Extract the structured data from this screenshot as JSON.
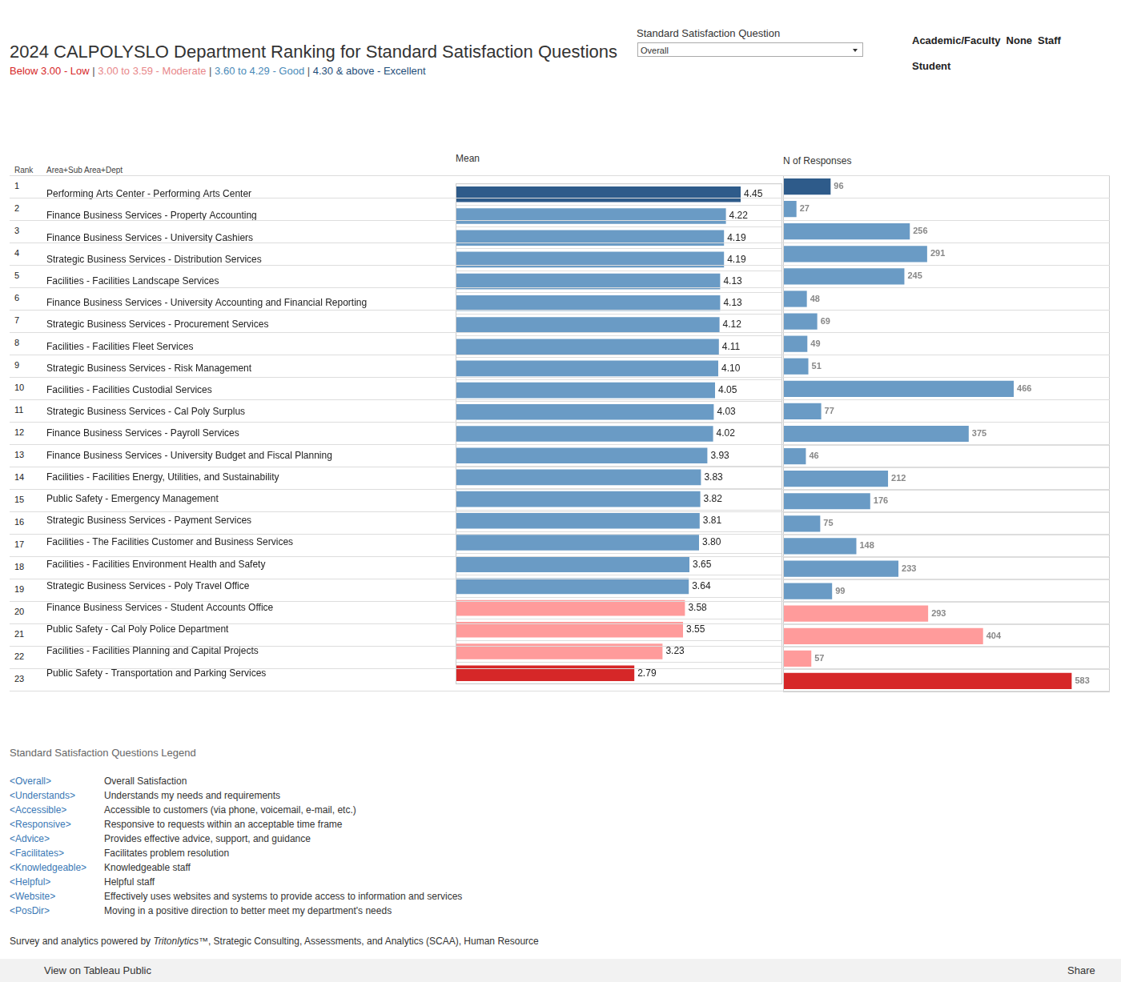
{
  "header": {
    "title": "2024 CALPOLYSLO Department Ranking for Standard Satisfaction Questions",
    "subtitle": [
      {
        "text": "Below 3.00 - Low",
        "color": "#d62728"
      },
      {
        "text": " | ",
        "color": "#555555"
      },
      {
        "text": "3.00 to 3.59 - Moderate",
        "color": "#e8878a"
      },
      {
        "text": " | ",
        "color": "#555555"
      },
      {
        "text": "3.60 to 4.29 - Good",
        "color": "#4a8ab8"
      },
      {
        "text": " | ",
        "color": "#555555"
      },
      {
        "text": "4.30 & above - Excellent",
        "color": "#1f4e79"
      }
    ],
    "filter": {
      "label": "Standard Satisfaction Question",
      "value": "Overall"
    },
    "roles": [
      "Academic/Faculty",
      "None",
      "Staff",
      "Student"
    ]
  },
  "table": {
    "rank_header": "Rank",
    "dept_header": "Area+Sub Area+Dept",
    "ranks": [
      1,
      2,
      3,
      4,
      5,
      6,
      7,
      8,
      9,
      10,
      11,
      12,
      13,
      14,
      15,
      16,
      17,
      18,
      19,
      20,
      21,
      22,
      23
    ]
  },
  "chart_data": [
    {
      "type": "bar",
      "title": "Mean",
      "orientation": "horizontal",
      "data_labels": true,
      "tick_labels": "y",
      "grid": true,
      "categories": [
        "Performing Arts Center - Performing Arts Center",
        "Finance Business Services - Property Accounting",
        "Finance Business Services - University Cashiers",
        "Strategic Business Services - Distribution Services",
        "Facilities - Facilities Landscape Services",
        "Finance Business Services - University Accounting and Financial Reporting",
        "Strategic Business Services - Procurement Services",
        "Facilities - Facilities Fleet Services",
        "Strategic Business Services - Risk Management",
        "Facilities - Facilities Custodial Services",
        "Strategic Business Services - Cal Poly Surplus",
        "Finance Business Services - Payroll Services",
        "Finance Business Services - University Budget and Fiscal Planning",
        "Facilities - Facilities Energy, Utilities, and Sustainability",
        "Public Safety - Emergency Management",
        "Strategic Business Services - Payment Services",
        "Facilities - The Facilities Customer and Business Services",
        "Facilities - Facilities Environment Health and Safety",
        "Strategic Business Services - Poly Travel Office",
        "Finance Business Services - Student Accounts Office",
        "Public Safety - Cal Poly Police Department",
        "Facilities - Facilities Planning and Capital Projects",
        "Public Safety - Transportation and Parking Services"
      ],
      "values": [
        4.45,
        4.22,
        4.19,
        4.19,
        4.13,
        4.13,
        4.12,
        4.11,
        4.1,
        4.05,
        4.03,
        4.02,
        3.93,
        3.83,
        3.82,
        3.81,
        3.8,
        3.65,
        3.64,
        3.58,
        3.55,
        3.23,
        2.79
      ],
      "value_labels": [
        "4.45",
        "4.22",
        "4.19",
        "4.19",
        "4.13",
        "4.13",
        "4.12",
        "4.11",
        "4.10",
        "4.05",
        "4.03",
        "4.02",
        "3.93",
        "3.83",
        "3.82",
        "3.81",
        "3.80",
        "3.65",
        "3.64",
        "3.58",
        "3.55",
        "3.23",
        "2.79"
      ],
      "colors": [
        "#2e5b8a",
        "#6a9bc5",
        "#6a9bc5",
        "#6a9bc5",
        "#6a9bc5",
        "#6a9bc5",
        "#6a9bc5",
        "#6a9bc5",
        "#6a9bc5",
        "#6a9bc5",
        "#6a9bc5",
        "#6a9bc5",
        "#6a9bc5",
        "#6a9bc5",
        "#6a9bc5",
        "#6a9bc5",
        "#6a9bc5",
        "#6a9bc5",
        "#6a9bc5",
        "#ff9b9b",
        "#ff9b9b",
        "#ff9b9b",
        "#d62728"
      ],
      "xlim": [
        0,
        5.1
      ]
    },
    {
      "type": "bar",
      "title": "N of Responses",
      "orientation": "horizontal",
      "data_labels": true,
      "tick_labels": false,
      "grid": true,
      "values": [
        96,
        27,
        256,
        291,
        245,
        48,
        69,
        49,
        51,
        466,
        77,
        375,
        46,
        212,
        176,
        75,
        148,
        233,
        99,
        293,
        404,
        57,
        583
      ],
      "colors": [
        "#2e5b8a",
        "#6a9bc5",
        "#6a9bc5",
        "#6a9bc5",
        "#6a9bc5",
        "#6a9bc5",
        "#6a9bc5",
        "#6a9bc5",
        "#6a9bc5",
        "#6a9bc5",
        "#6a9bc5",
        "#6a9bc5",
        "#6a9bc5",
        "#6a9bc5",
        "#6a9bc5",
        "#6a9bc5",
        "#6a9bc5",
        "#6a9bc5",
        "#6a9bc5",
        "#ff9b9b",
        "#ff9b9b",
        "#ff9b9b",
        "#d62728"
      ],
      "xlim": [
        0,
        660
      ]
    }
  ],
  "legend": {
    "title": "Standard Satisfaction Questions Legend",
    "items": [
      {
        "code": "<Overall>",
        "text": "Overall Satisfaction"
      },
      {
        "code": "<Understands>",
        "text": "Understands my needs and requirements"
      },
      {
        "code": "<Accessible>",
        "text": "Accessible to customers (via phone, voicemail, e-mail, etc.)"
      },
      {
        "code": "<Responsive>",
        "text": "Responsive to requests within an acceptable time frame"
      },
      {
        "code": "<Advice>",
        "text": "Provides effective advice, support, and guidance"
      },
      {
        "code": "<Facilitates>",
        "text": "Facilitates problem resolution"
      },
      {
        "code": "<Knowledgeable>",
        "text": "Knowledgeable staff"
      },
      {
        "code": "<Helpful>",
        "text": "Helpful staff"
      },
      {
        "code": "<Website>",
        "text": "Effectively uses websites and systems to provide access to information and services"
      },
      {
        "code": "<PosDir>",
        "text": "Moving in a positive direction to better meet my department's needs"
      }
    ]
  },
  "footer": {
    "before": "Survey and analytics powered by ",
    "italic": "Tritonlytics™",
    "after": ", Strategic Consulting, Assessments, and Analytics (SCAA), Human Resource"
  },
  "toolbar": {
    "left": "View on Tableau Public",
    "right": "Share"
  }
}
